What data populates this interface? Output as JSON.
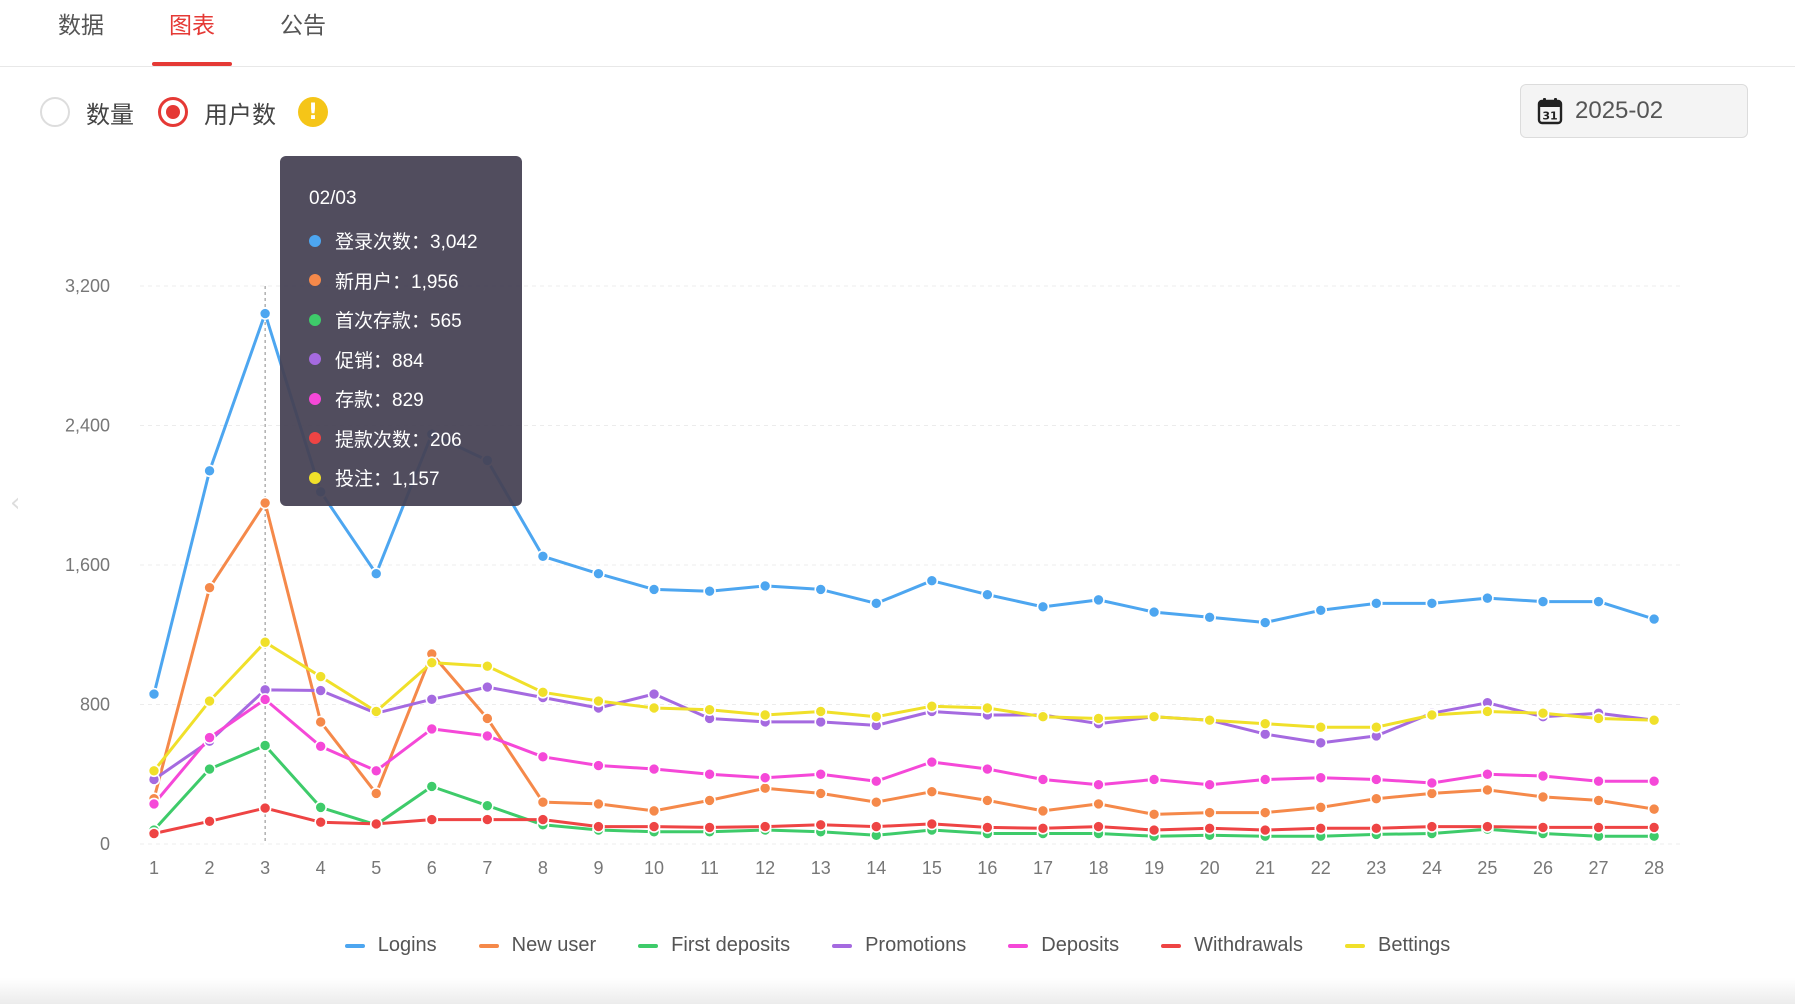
{
  "tabs": [
    {
      "label": "数据",
      "active": false
    },
    {
      "label": "图表",
      "active": true
    },
    {
      "label": "公告",
      "active": false
    }
  ],
  "options": [
    {
      "label": "数量",
      "checked": false
    },
    {
      "label": "用户数",
      "checked": true
    }
  ],
  "info_icon": "exclamation-icon",
  "date_picker": {
    "value": "2025-02",
    "icon": "calendar-icon"
  },
  "tooltip": {
    "title": "02/03",
    "rows": [
      {
        "label": "登录次数：3,042",
        "color": "#4da6f0"
      },
      {
        "label": "新用户：1,956",
        "color": "#f5894a"
      },
      {
        "label": "首次存款：565",
        "color": "#3ecb6a"
      },
      {
        "label": "促销：884",
        "color": "#a56ae0"
      },
      {
        "label": "存款：829",
        "color": "#f548d8"
      },
      {
        "label": "提款次数：206",
        "color": "#ee4444"
      },
      {
        "label": "投注：1,157",
        "color": "#f0e02a"
      }
    ]
  },
  "chart_data": {
    "type": "line",
    "x": [
      "1",
      "2",
      "3",
      "4",
      "5",
      "6",
      "7",
      "8",
      "9",
      "10",
      "11",
      "12",
      "13",
      "14",
      "15",
      "16",
      "17",
      "18",
      "19",
      "20",
      "21",
      "22",
      "23",
      "24",
      "25",
      "26",
      "27",
      "28"
    ],
    "ylim": [
      0,
      3200
    ],
    "yticks": [
      "0",
      "800",
      "1,600",
      "2,400",
      "3,200"
    ],
    "ytick_values": [
      0,
      800,
      1600,
      2400,
      3200
    ],
    "grid": true,
    "legend": "bottom",
    "highlight_index": 2,
    "series": [
      {
        "name": "Logins",
        "color": "#4da6f0",
        "values": [
          860,
          2140,
          3042,
          2020,
          1550,
          2350,
          2200,
          1650,
          1550,
          1460,
          1450,
          1480,
          1460,
          1380,
          1510,
          1430,
          1360,
          1400,
          1330,
          1300,
          1270,
          1340,
          1380,
          1380,
          1410,
          1390,
          1390,
          1290
        ]
      },
      {
        "name": "New user",
        "color": "#f5894a",
        "values": [
          260,
          1470,
          1956,
          700,
          290,
          1090,
          720,
          240,
          230,
          190,
          250,
          320,
          290,
          240,
          300,
          250,
          190,
          230,
          170,
          180,
          180,
          210,
          260,
          290,
          310,
          270,
          250,
          200
        ]
      },
      {
        "name": "First deposits",
        "color": "#3ecb6a",
        "values": [
          80,
          430,
          565,
          210,
          110,
          330,
          220,
          110,
          80,
          70,
          70,
          80,
          70,
          50,
          80,
          60,
          60,
          60,
          45,
          50,
          45,
          45,
          55,
          60,
          85,
          60,
          45,
          45
        ]
      },
      {
        "name": "Promotions",
        "color": "#a56ae0",
        "values": [
          370,
          590,
          884,
          880,
          750,
          830,
          900,
          840,
          780,
          860,
          720,
          700,
          700,
          680,
          760,
          740,
          740,
          690,
          730,
          710,
          630,
          580,
          620,
          750,
          810,
          730,
          750,
          710
        ]
      },
      {
        "name": "Deposits",
        "color": "#f548d8",
        "values": [
          230,
          610,
          829,
          560,
          420,
          660,
          620,
          500,
          450,
          430,
          400,
          380,
          400,
          360,
          470,
          430,
          370,
          340,
          370,
          340,
          370,
          380,
          370,
          350,
          400,
          390,
          360,
          360
        ]
      },
      {
        "name": "Withdrawals",
        "color": "#ee4444",
        "values": [
          60,
          130,
          206,
          125,
          115,
          140,
          140,
          140,
          100,
          100,
          95,
          100,
          110,
          100,
          115,
          95,
          90,
          100,
          80,
          90,
          80,
          90,
          90,
          100,
          100,
          95,
          95,
          95
        ]
      },
      {
        "name": "Bettings",
        "color": "#f0e02a",
        "values": [
          420,
          820,
          1157,
          960,
          760,
          1040,
          1020,
          870,
          820,
          780,
          770,
          740,
          760,
          730,
          790,
          780,
          730,
          720,
          730,
          710,
          690,
          670,
          670,
          740,
          760,
          750,
          720,
          710
        ]
      }
    ]
  }
}
